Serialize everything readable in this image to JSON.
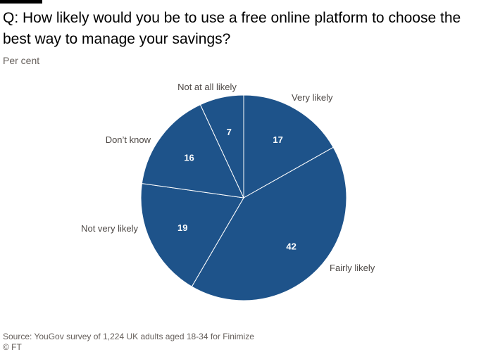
{
  "header": {
    "title": "Q: How likely would you be to use a free online platform to choose the best way to manage your savings?",
    "subtitle": "Per cent"
  },
  "footer": {
    "source": "Source: YouGov survey of 1,224 UK adults aged 18-34 for Finimize",
    "credit": "© FT"
  },
  "colors": {
    "slice_fill": "#1e538a",
    "slice_stroke": "#ffffff"
  },
  "chart_data": {
    "type": "pie",
    "title": "Q: How likely would you be to use a free online platform to choose the best way to manage your savings?",
    "subtitle": "Per cent",
    "start": "12 o'clock",
    "direction": "clockwise",
    "slices": [
      {
        "label": "Very likely",
        "value": 17
      },
      {
        "label": "Fairly likely",
        "value": 42
      },
      {
        "label": "Not very likely",
        "value": 19
      },
      {
        "label": "Don’t know",
        "value": 16
      },
      {
        "label": "Not at all likely",
        "value": 7
      }
    ]
  }
}
